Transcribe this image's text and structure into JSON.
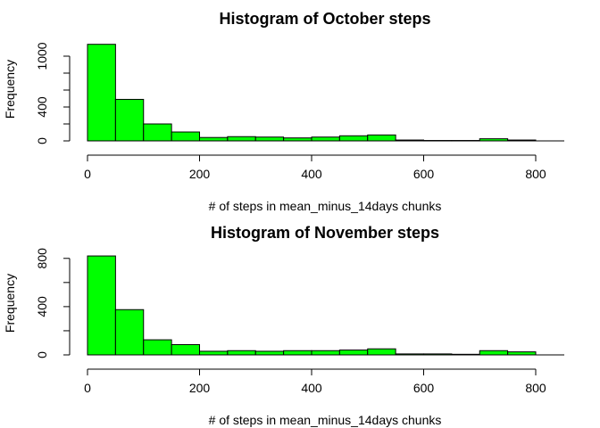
{
  "chart_data": [
    {
      "type": "bar",
      "title": "Histogram of October steps",
      "xlabel": "# of steps in mean_minus_14days chunks",
      "ylabel": "Frequency",
      "bin_edges": [
        0,
        50,
        100,
        150,
        200,
        250,
        300,
        350,
        400,
        450,
        500,
        550,
        600,
        650,
        700,
        750,
        800
      ],
      "values": [
        1140,
        490,
        200,
        105,
        40,
        50,
        45,
        35,
        45,
        60,
        70,
        10,
        5,
        5,
        25,
        10
      ],
      "xlim": [
        0,
        850
      ],
      "ylim": [
        0,
        1200
      ],
      "x_ticks": [
        "0",
        "200",
        "400",
        "600",
        "800"
      ],
      "y_ticks": [
        "0",
        "400",
        "1000"
      ],
      "y_tick_values": [
        0,
        200,
        400,
        600,
        800,
        1000
      ],
      "bar_color": "#00ff00",
      "grid": false
    },
    {
      "type": "bar",
      "title": "Histogram of November steps",
      "xlabel": "# of steps in mean_minus_14days chunks",
      "ylabel": "Frequency",
      "bin_edges": [
        0,
        50,
        100,
        150,
        200,
        250,
        300,
        350,
        400,
        450,
        500,
        550,
        600,
        650,
        700,
        750,
        800
      ],
      "values": [
        820,
        375,
        125,
        85,
        30,
        35,
        30,
        35,
        35,
        40,
        50,
        8,
        8,
        5,
        35,
        25
      ],
      "xlim": [
        0,
        850
      ],
      "ylim": [
        0,
        850
      ],
      "x_ticks": [
        "0",
        "200",
        "400",
        "600",
        "800"
      ],
      "y_ticks": [
        "0",
        "400",
        "800"
      ],
      "y_tick_values": [
        0,
        200,
        400,
        600,
        800
      ],
      "bar_color": "#00ff00",
      "grid": false
    }
  ]
}
